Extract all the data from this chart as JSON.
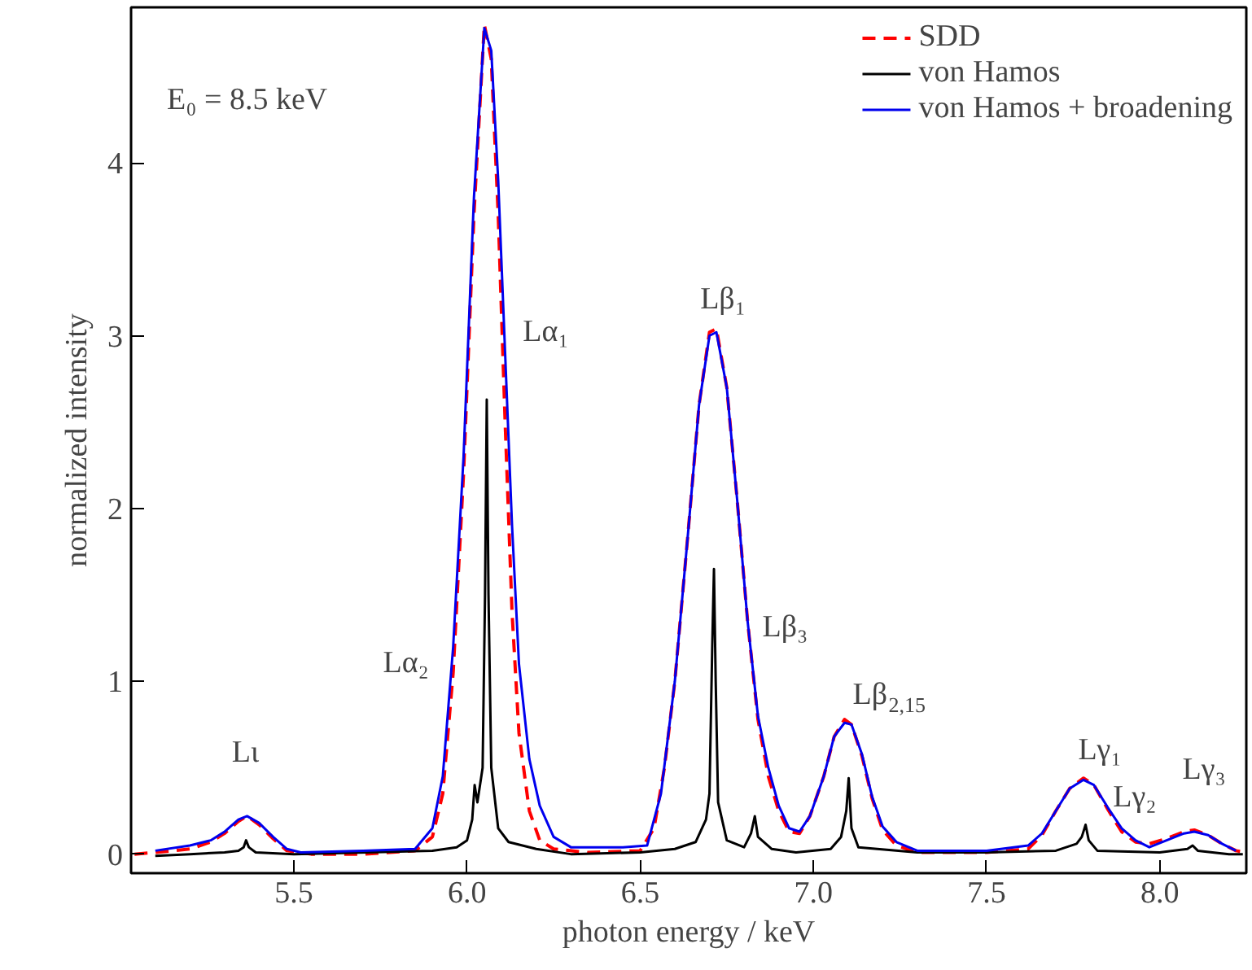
{
  "chart_data": {
    "type": "line",
    "xlabel": "photon energy / keV",
    "ylabel": "normalized intensity",
    "xlim": [
      5.03,
      8.25
    ],
    "ylim": [
      -0.11,
      4.9
    ],
    "xticks": [
      {
        "value": 5.5,
        "label": "5.5"
      },
      {
        "value": 6.0,
        "label": "6.0"
      },
      {
        "value": 6.5,
        "label": "6.5"
      },
      {
        "value": 7.0,
        "label": "7.0"
      },
      {
        "value": 7.5,
        "label": "7.5"
      },
      {
        "value": 8.0,
        "label": "8.0"
      }
    ],
    "yticks": [
      0,
      1,
      2,
      3,
      4
    ],
    "grid": false,
    "legend": "top right",
    "series": [
      {
        "name": "SDD",
        "color": "#ff0000",
        "line_style": "dashed",
        "x": [
          5.04,
          5.1,
          5.2,
          5.26,
          5.3,
          5.34,
          5.365,
          5.4,
          5.44,
          5.48,
          5.55,
          5.7,
          5.85,
          5.9,
          5.93,
          5.96,
          5.99,
          6.02,
          6.05,
          6.07,
          6.09,
          6.11,
          6.13,
          6.15,
          6.18,
          6.21,
          6.25,
          6.35,
          6.5,
          6.54,
          6.57,
          6.6,
          6.64,
          6.67,
          6.7,
          6.72,
          6.75,
          6.78,
          6.81,
          6.84,
          6.87,
          6.9,
          6.93,
          6.96,
          6.99,
          7.03,
          7.06,
          7.09,
          7.11,
          7.14,
          7.17,
          7.2,
          7.24,
          7.3,
          7.5,
          7.62,
          7.66,
          7.7,
          7.74,
          7.78,
          7.81,
          7.85,
          7.89,
          7.93,
          7.97,
          8.02,
          8.07,
          8.1,
          8.14,
          8.18,
          8.22,
          8.25
        ],
        "values": [
          0.0,
          0.01,
          0.03,
          0.07,
          0.12,
          0.19,
          0.22,
          0.17,
          0.09,
          0.02,
          0.0,
          0.0,
          0.02,
          0.1,
          0.35,
          1.05,
          2.2,
          3.7,
          4.8,
          4.6,
          3.7,
          2.5,
          1.4,
          0.7,
          0.25,
          0.08,
          0.03,
          0.01,
          0.02,
          0.15,
          0.5,
          1.0,
          1.9,
          2.6,
          3.02,
          3.04,
          2.7,
          2.05,
          1.35,
          0.78,
          0.45,
          0.25,
          0.13,
          0.12,
          0.22,
          0.45,
          0.68,
          0.78,
          0.75,
          0.57,
          0.32,
          0.14,
          0.05,
          0.01,
          0.01,
          0.03,
          0.11,
          0.25,
          0.38,
          0.44,
          0.4,
          0.26,
          0.13,
          0.07,
          0.06,
          0.09,
          0.13,
          0.14,
          0.11,
          0.06,
          0.02,
          0.01
        ]
      },
      {
        "name": "von Hamos",
        "color": "#000000",
        "line_style": "solid",
        "x": [
          5.1,
          5.2,
          5.3,
          5.34,
          5.355,
          5.362,
          5.37,
          5.39,
          5.5,
          5.9,
          5.97,
          6.0,
          6.015,
          6.022,
          6.03,
          6.045,
          6.052,
          6.057,
          6.062,
          6.07,
          6.09,
          6.12,
          6.2,
          6.3,
          6.5,
          6.6,
          6.66,
          6.69,
          6.7,
          6.708,
          6.713,
          6.718,
          6.725,
          6.75,
          6.8,
          6.82,
          6.831,
          6.84,
          6.88,
          6.95,
          7.05,
          7.08,
          7.095,
          7.102,
          7.11,
          7.13,
          7.3,
          7.5,
          7.7,
          7.76,
          7.775,
          7.786,
          7.795,
          7.82,
          8.0,
          8.08,
          8.095,
          8.11,
          8.2,
          8.24
        ],
        "values": [
          -0.01,
          0.0,
          0.01,
          0.02,
          0.04,
          0.08,
          0.04,
          0.01,
          0.0,
          0.02,
          0.04,
          0.08,
          0.2,
          0.4,
          0.3,
          0.5,
          1.5,
          2.63,
          1.5,
          0.5,
          0.15,
          0.07,
          0.03,
          0.0,
          0.01,
          0.03,
          0.07,
          0.2,
          0.35,
          1.2,
          1.65,
          1.0,
          0.3,
          0.08,
          0.04,
          0.12,
          0.22,
          0.1,
          0.03,
          0.01,
          0.03,
          0.1,
          0.25,
          0.44,
          0.15,
          0.04,
          0.01,
          0.01,
          0.02,
          0.06,
          0.1,
          0.17,
          0.08,
          0.02,
          0.01,
          0.03,
          0.05,
          0.02,
          0.0,
          0.0
        ]
      },
      {
        "name": "von Hamos + broadening",
        "color": "#0000ee",
        "line_style": "solid",
        "x": [
          5.1,
          5.2,
          5.26,
          5.3,
          5.34,
          5.365,
          5.4,
          5.44,
          5.48,
          5.52,
          5.7,
          5.85,
          5.9,
          5.93,
          5.96,
          5.99,
          6.02,
          6.05,
          6.07,
          6.09,
          6.11,
          6.13,
          6.15,
          6.18,
          6.21,
          6.25,
          6.3,
          6.45,
          6.52,
          6.56,
          6.6,
          6.64,
          6.67,
          6.7,
          6.72,
          6.75,
          6.78,
          6.81,
          6.84,
          6.87,
          6.9,
          6.93,
          6.96,
          6.99,
          7.03,
          7.06,
          7.09,
          7.11,
          7.14,
          7.17,
          7.2,
          7.24,
          7.3,
          7.5,
          7.62,
          7.66,
          7.7,
          7.74,
          7.78,
          7.81,
          7.85,
          7.89,
          7.93,
          7.97,
          8.02,
          8.07,
          8.1,
          8.14,
          8.18,
          8.22
        ],
        "values": [
          0.02,
          0.05,
          0.08,
          0.13,
          0.2,
          0.22,
          0.18,
          0.1,
          0.03,
          0.01,
          0.02,
          0.03,
          0.15,
          0.45,
          1.2,
          2.3,
          3.8,
          4.78,
          4.65,
          3.9,
          2.9,
          1.9,
          1.1,
          0.55,
          0.28,
          0.1,
          0.04,
          0.04,
          0.05,
          0.35,
          1.0,
          1.9,
          2.6,
          3.0,
          3.02,
          2.7,
          2.05,
          1.35,
          0.8,
          0.5,
          0.28,
          0.15,
          0.13,
          0.22,
          0.45,
          0.68,
          0.76,
          0.75,
          0.58,
          0.33,
          0.16,
          0.07,
          0.02,
          0.02,
          0.05,
          0.12,
          0.25,
          0.38,
          0.43,
          0.4,
          0.27,
          0.15,
          0.08,
          0.04,
          0.08,
          0.12,
          0.13,
          0.11,
          0.06,
          0.02
        ]
      }
    ],
    "annotations": [
      "E₀ = 8.5 keV",
      {
        "text": "Lι",
        "x": 5.365,
        "y": 0.22
      },
      {
        "text": "Lα₂",
        "x": 5.96,
        "y": 1.2
      },
      {
        "text": "Lα₁",
        "x": 6.11,
        "y": 2.9
      },
      {
        "text": "Lβ₁",
        "x": 6.72,
        "y": 3.02
      },
      {
        "text": "Lβ₃",
        "x": 6.81,
        "y": 1.35
      },
      {
        "text": "Lβ$_{2,15}$",
        "x": 7.09,
        "y": 0.76
      },
      {
        "text": "Lγ₁",
        "x": 7.78,
        "y": 0.43
      },
      {
        "text": "Lγ₂",
        "x": 7.89,
        "y": 0.15
      },
      {
        "text": "Lγ₃",
        "x": 8.1,
        "y": 0.13
      }
    ]
  }
}
